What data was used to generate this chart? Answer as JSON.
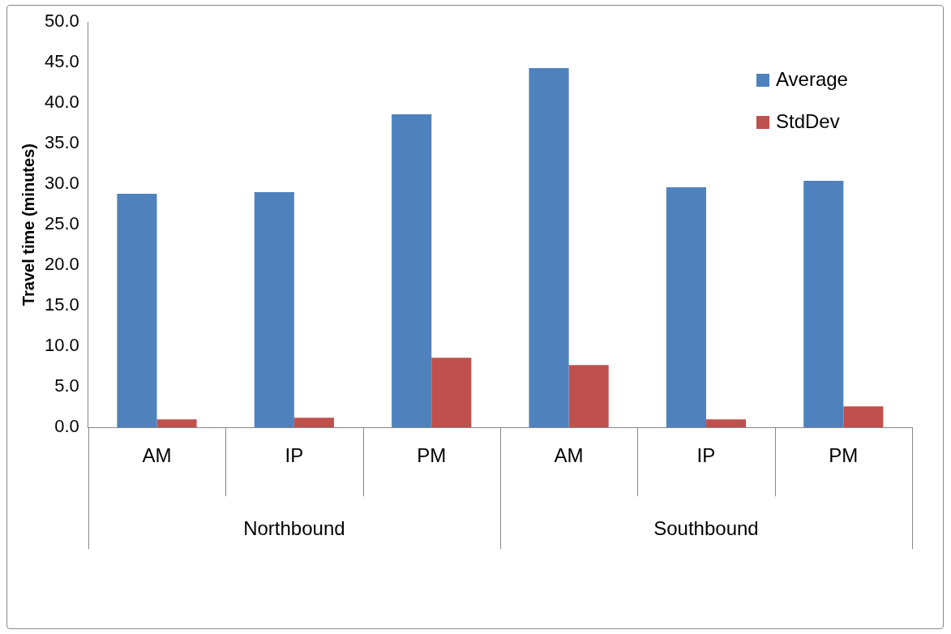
{
  "chart_data": {
    "type": "bar",
    "ylabel": "Travel time (minutes)",
    "categories": [
      "AM",
      "IP",
      "PM",
      "AM",
      "IP",
      "PM"
    ],
    "annotations": [
      "Northbound",
      "Southbound"
    ],
    "series": [
      {
        "name": "Average",
        "color": "#4f81bd",
        "values": [
          28.8,
          29.0,
          38.6,
          44.3,
          29.6,
          30.4
        ]
      },
      {
        "name": "StdDev",
        "color": "#c0504d",
        "values": [
          1.0,
          1.2,
          8.6,
          7.7,
          1.0,
          2.6
        ]
      }
    ],
    "ylim": [
      0,
      50
    ],
    "yticks": [
      {
        "value": 0,
        "label": "0.0"
      },
      {
        "value": 5,
        "label": "5.0"
      },
      {
        "value": 10,
        "label": "10.0"
      },
      {
        "value": 15,
        "label": "15.0"
      },
      {
        "value": 20,
        "label": "20.0"
      },
      {
        "value": 25,
        "label": "25.0"
      },
      {
        "value": 30,
        "label": "30.0"
      },
      {
        "value": 35,
        "label": "35.0"
      },
      {
        "value": 40,
        "label": "40.0"
      },
      {
        "value": 45,
        "label": "45.0"
      },
      {
        "value": 50,
        "label": "50.0"
      }
    ],
    "grid": false,
    "legend": "top right"
  }
}
